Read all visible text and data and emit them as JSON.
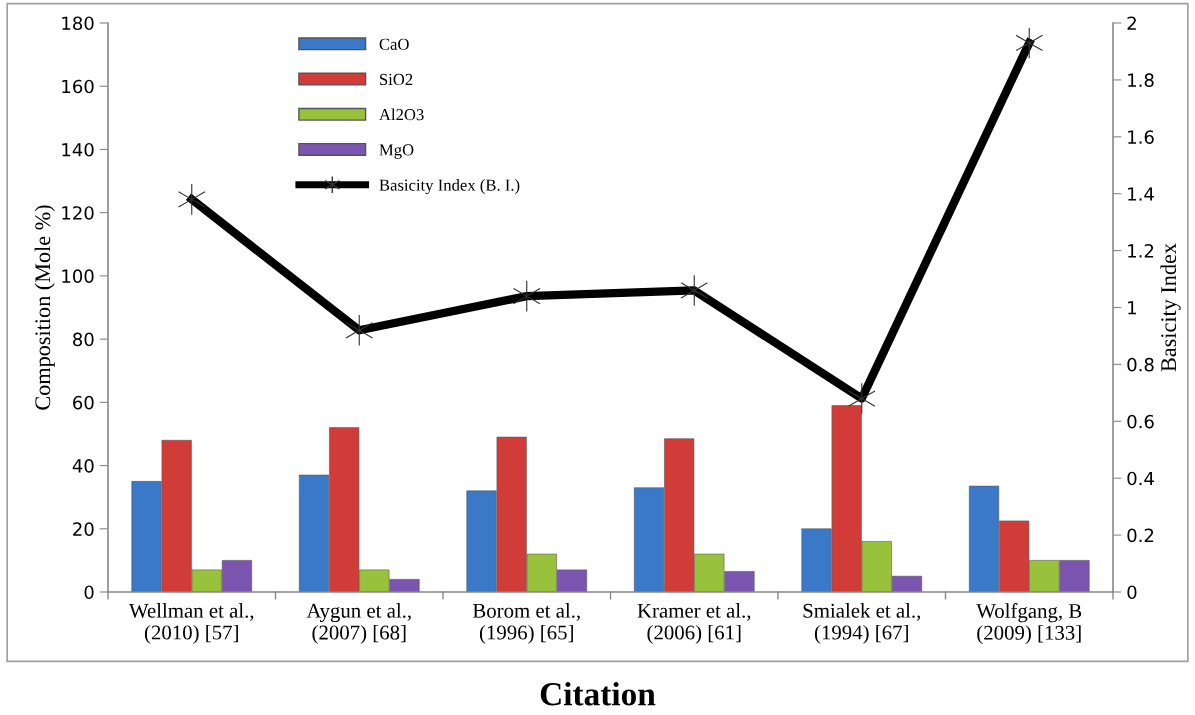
{
  "chart_data": {
    "type": "bar",
    "xlabel": "Citation",
    "ylabel": "Composition (Mole %)",
    "y2label": "Basicity Index",
    "categories": [
      "Wellman et al.,\n(2010) [57]",
      "Aygun et al.,\n(2007) [68]",
      "Borom et al.,\n(1996) [65]",
      "Kramer et al.,\n(2006) [61]",
      "Smialek et al.,\n(1994) [67]",
      "Wolfgang, B\n(2009) [133]"
    ],
    "series": [
      {
        "name": "CaO",
        "color": "#3a78c8",
        "values": [
          35,
          37,
          32,
          33,
          20,
          33.5
        ]
      },
      {
        "name": "SiO2",
        "color": "#d23c38",
        "values": [
          48,
          52,
          49,
          48.5,
          59,
          22.5
        ]
      },
      {
        "name": "Al2O3",
        "color": "#98c13c",
        "values": [
          7,
          7,
          12,
          12,
          16,
          10
        ]
      },
      {
        "name": "MgO",
        "color": "#7b55b0",
        "values": [
          10,
          4,
          7,
          6.5,
          5,
          10
        ]
      },
      {
        "name": "Basicity Index (B. I.)",
        "type": "line",
        "axis": "y2",
        "color": "#000000",
        "marker": "cross",
        "values": [
          1.38,
          0.92,
          1.04,
          1.06,
          0.68,
          1.93
        ]
      }
    ],
    "ylim": [
      0,
      180
    ],
    "yticks": [
      0,
      20,
      40,
      60,
      80,
      100,
      120,
      140,
      160,
      180
    ],
    "y2lim": [
      0,
      2
    ],
    "y2ticks": [
      0,
      {
        "value": 0.2,
        "label": "0.2"
      },
      {
        "value": 0.4,
        "label": "0.4"
      },
      {
        "value": 0.6,
        "label": "0.6"
      },
      {
        "value": 0.8,
        "label": "0.8"
      },
      1,
      {
        "value": 1.2,
        "label": "1.2"
      },
      {
        "value": 1.4,
        "label": "1.4"
      },
      {
        "value": 1.6,
        "label": "1.6"
      },
      {
        "value": 1.8,
        "label": "1.8"
      },
      2
    ],
    "grid": false,
    "legend": "top"
  }
}
